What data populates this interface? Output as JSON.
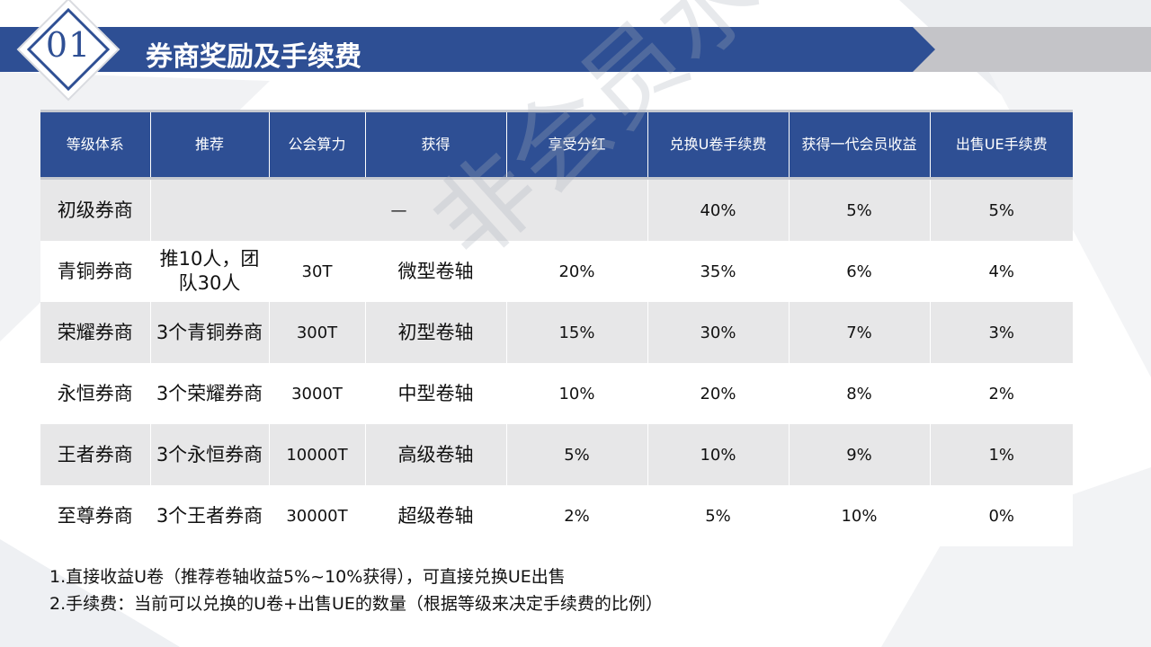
{
  "header": {
    "badge": "01",
    "title": "券商奖励及手续费"
  },
  "watermark": "非会员水印",
  "table": {
    "columns": [
      "等级体系",
      "推荐",
      "公会算力",
      "获得",
      "享受分红",
      "兑换U卷手续费",
      "获得一代会员收益",
      "出售UE手续费"
    ],
    "rows": [
      {
        "level": "初级券商",
        "merged": "—",
        "exchange_fee": "40%",
        "first_gen_income": "5%",
        "sell_fee": "5%"
      },
      {
        "level": "青铜券商",
        "recommend": "推10人，团队30人",
        "power": "30T",
        "gain": "微型卷轴",
        "dividend": "20%",
        "exchange_fee": "35%",
        "first_gen_income": "6%",
        "sell_fee": "4%"
      },
      {
        "level": "荣耀券商",
        "recommend": "3个青铜券商",
        "power": "300T",
        "gain": "初型卷轴",
        "dividend": "15%",
        "exchange_fee": "30%",
        "first_gen_income": "7%",
        "sell_fee": "3%"
      },
      {
        "level": "永恒券商",
        "recommend": "3个荣耀券商",
        "power": "3000T",
        "gain": "中型卷轴",
        "dividend": "10%",
        "exchange_fee": "20%",
        "first_gen_income": "8%",
        "sell_fee": "2%"
      },
      {
        "level": "王者券商",
        "recommend": "3个永恒券商",
        "power": "10000T",
        "gain": "高级卷轴",
        "dividend": "5%",
        "exchange_fee": "10%",
        "first_gen_income": "9%",
        "sell_fee": "1%"
      },
      {
        "level": "至尊券商",
        "recommend": "3个王者券商",
        "power": "30000T",
        "gain": "超级卷轴",
        "dividend": "2%",
        "exchange_fee": "5%",
        "first_gen_income": "10%",
        "sell_fee": "0%"
      }
    ]
  },
  "notes": [
    "1.直接收益U卷（推荐卷轴收益5%~10%获得），可直接兑换UE出售",
    "2.手续费：当前可以兑换的U卷+出售UE的数量（根据等级来决定手续费的比例）"
  ]
}
